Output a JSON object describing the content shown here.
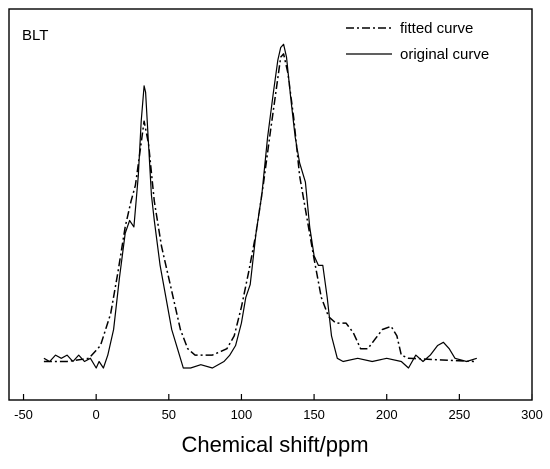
{
  "chart_data": {
    "type": "line",
    "panel_label": "BLT",
    "title": "",
    "xlabel": "Chemical shift/ppm",
    "ylabel": "",
    "xlim": [
      -60,
      300
    ],
    "ylim": [
      -0.12,
      1.1
    ],
    "x_ticks": [
      -50,
      0,
      50,
      100,
      150,
      200,
      250,
      300
    ],
    "y_ticks_shown": false,
    "grid": false,
    "legend_position": "top-right",
    "series": [
      {
        "name": "fitted curve",
        "style": "dash-dot",
        "points": [
          [
            -36,
            0.0
          ],
          [
            -20,
            0.0
          ],
          [
            -5,
            0.01
          ],
          [
            3,
            0.05
          ],
          [
            10,
            0.15
          ],
          [
            15,
            0.28
          ],
          [
            20,
            0.42
          ],
          [
            24,
            0.5
          ],
          [
            27,
            0.55
          ],
          [
            30,
            0.65
          ],
          [
            33,
            0.75
          ],
          [
            36,
            0.68
          ],
          [
            40,
            0.5
          ],
          [
            45,
            0.36
          ],
          [
            52,
            0.22
          ],
          [
            58,
            0.1
          ],
          [
            63,
            0.04
          ],
          [
            68,
            0.02
          ],
          [
            80,
            0.02
          ],
          [
            90,
            0.04
          ],
          [
            95,
            0.08
          ],
          [
            100,
            0.17
          ],
          [
            105,
            0.28
          ],
          [
            110,
            0.4
          ],
          [
            115,
            0.55
          ],
          [
            120,
            0.72
          ],
          [
            124,
            0.85
          ],
          [
            127,
            0.95
          ],
          [
            129,
            0.96
          ],
          [
            132,
            0.9
          ],
          [
            136,
            0.76
          ],
          [
            140,
            0.58
          ],
          [
            145,
            0.45
          ],
          [
            150,
            0.32
          ],
          [
            155,
            0.2
          ],
          [
            160,
            0.14
          ],
          [
            165,
            0.12
          ],
          [
            172,
            0.12
          ],
          [
            177,
            0.09
          ],
          [
            182,
            0.04
          ],
          [
            187,
            0.04
          ],
          [
            192,
            0.07
          ],
          [
            197,
            0.1
          ],
          [
            203,
            0.11
          ],
          [
            207,
            0.08
          ],
          [
            210,
            0.02
          ],
          [
            215,
            0.01
          ],
          [
            260,
            0.0
          ]
        ]
      },
      {
        "name": "original curve",
        "style": "solid",
        "points": [
          [
            -36,
            0.01
          ],
          [
            -32,
            0.0
          ],
          [
            -28,
            0.02
          ],
          [
            -24,
            0.01
          ],
          [
            -20,
            0.02
          ],
          [
            -16,
            0.0
          ],
          [
            -12,
            0.02
          ],
          [
            -8,
            0.0
          ],
          [
            -4,
            0.01
          ],
          [
            0,
            -0.02
          ],
          [
            2,
            0.0
          ],
          [
            5,
            -0.02
          ],
          [
            8,
            0.02
          ],
          [
            12,
            0.1
          ],
          [
            16,
            0.26
          ],
          [
            20,
            0.4
          ],
          [
            23,
            0.44
          ],
          [
            26,
            0.42
          ],
          [
            29,
            0.58
          ],
          [
            31,
            0.75
          ],
          [
            33,
            0.86
          ],
          [
            34,
            0.84
          ],
          [
            36,
            0.68
          ],
          [
            38,
            0.52
          ],
          [
            40,
            0.44
          ],
          [
            44,
            0.3
          ],
          [
            48,
            0.2
          ],
          [
            52,
            0.1
          ],
          [
            56,
            0.04
          ],
          [
            60,
            -0.02
          ],
          [
            65,
            -0.02
          ],
          [
            72,
            -0.01
          ],
          [
            80,
            -0.02
          ],
          [
            88,
            0.0
          ],
          [
            92,
            0.02
          ],
          [
            96,
            0.05
          ],
          [
            100,
            0.12
          ],
          [
            103,
            0.2
          ],
          [
            106,
            0.24
          ],
          [
            110,
            0.4
          ],
          [
            114,
            0.52
          ],
          [
            118,
            0.7
          ],
          [
            122,
            0.84
          ],
          [
            125,
            0.94
          ],
          [
            127,
            0.98
          ],
          [
            129,
            0.99
          ],
          [
            131,
            0.95
          ],
          [
            134,
            0.82
          ],
          [
            137,
            0.7
          ],
          [
            140,
            0.62
          ],
          [
            144,
            0.56
          ],
          [
            147,
            0.42
          ],
          [
            150,
            0.33
          ],
          [
            153,
            0.3
          ],
          [
            156,
            0.3
          ],
          [
            159,
            0.2
          ],
          [
            162,
            0.08
          ],
          [
            166,
            0.01
          ],
          [
            170,
            0.0
          ],
          [
            180,
            0.01
          ],
          [
            190,
            0.0
          ],
          [
            200,
            0.01
          ],
          [
            210,
            0.0
          ],
          [
            215,
            -0.02
          ],
          [
            220,
            0.02
          ],
          [
            225,
            0.0
          ],
          [
            230,
            0.02
          ],
          [
            235,
            0.05
          ],
          [
            239,
            0.06
          ],
          [
            243,
            0.04
          ],
          [
            247,
            0.01
          ],
          [
            255,
            0.0
          ],
          [
            262,
            0.01
          ]
        ]
      }
    ]
  }
}
